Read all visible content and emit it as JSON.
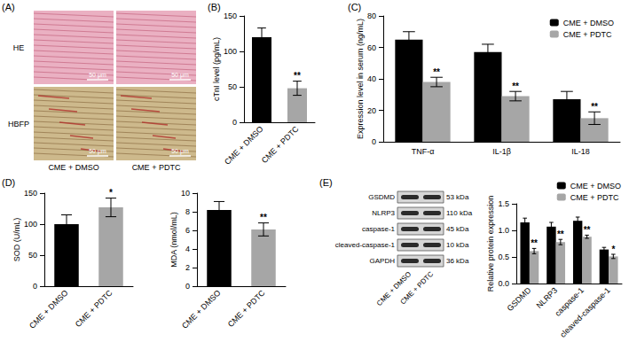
{
  "panel_labels": [
    "(A)",
    "(B)",
    "(C)",
    "(D)",
    "(E)"
  ],
  "histology": {
    "rows": [
      "HE",
      "HBFP"
    ],
    "columns": [
      "CME + DMSO",
      "CME + PDTC"
    ],
    "scale_bar": "50 μm"
  },
  "western_blot": {
    "proteins": [
      {
        "name": "GSDMD",
        "size": "53 kDa"
      },
      {
        "name": "NLRP3",
        "size": "110 kDa"
      },
      {
        "name": "caspase-1",
        "size": "45 kDa"
      },
      {
        "name": "cleaved-caspase-1",
        "size": "10 kDa"
      },
      {
        "name": "GAPDH",
        "size": "36 kDa"
      }
    ],
    "lanes": [
      "CME + DMSO",
      "CME + PDTC"
    ]
  },
  "chart_data": [
    {
      "type": "bar",
      "y_label": "cTnI level (pg/mL)",
      "categories": [
        "CME + DMSO",
        "CME + PDTC"
      ],
      "values": [
        120,
        48
      ],
      "errors": [
        13,
        10
      ],
      "significance": [
        null,
        "**"
      ],
      "colors": [
        "#000000",
        "#a6a6a6"
      ],
      "ylim": [
        0,
        150
      ],
      "yticks": [
        0,
        50,
        100,
        150
      ],
      "grid": false
    },
    {
      "type": "bar",
      "y_label": "Expression level in serum (ng/mL)",
      "categories": [
        "TNF-α",
        "IL-1β",
        "IL-18"
      ],
      "series": [
        {
          "name": "CME + DMSO",
          "color": "#000000",
          "values": [
            65,
            57,
            27
          ],
          "errors": [
            5,
            5,
            5
          ],
          "significance": [
            null,
            null,
            null
          ]
        },
        {
          "name": "CME + PDTC",
          "color": "#a6a6a6",
          "values": [
            38,
            29,
            15
          ],
          "errors": [
            3,
            3,
            4
          ],
          "significance": [
            "**",
            "**",
            "**"
          ]
        }
      ],
      "ylim": [
        0,
        80
      ],
      "yticks": [
        0,
        20,
        40,
        60,
        80
      ],
      "legend": "upper right",
      "grid": false
    },
    {
      "type": "bar",
      "y_label": "SOD (U/mL)",
      "categories": [
        "CME + DMSO",
        "CME + PDTC"
      ],
      "values": [
        100,
        127
      ],
      "errors": [
        15,
        15
      ],
      "significance": [
        null,
        "*"
      ],
      "colors": [
        "#000000",
        "#a6a6a6"
      ],
      "ylim": [
        0,
        150
      ],
      "yticks": [
        0,
        50,
        100,
        150
      ],
      "grid": false
    },
    {
      "type": "bar",
      "y_label": "MDA (nmol/mL)",
      "categories": [
        "CME + DMSO",
        "CME + PDTC"
      ],
      "values": [
        8.2,
        6.1
      ],
      "errors": [
        0.9,
        0.7
      ],
      "significance": [
        null,
        "**"
      ],
      "colors": [
        "#000000",
        "#a6a6a6"
      ],
      "ylim": [
        0,
        10
      ],
      "yticks": [
        0,
        2,
        4,
        6,
        8,
        10
      ],
      "grid": false
    },
    {
      "type": "bar",
      "y_label": "Relative protein expression",
      "categories": [
        "GSDMD",
        "NLRP3",
        "caspase-1",
        "cleaved-caspase-1"
      ],
      "series": [
        {
          "name": "CME + DMSO",
          "color": "#000000",
          "values": [
            1.15,
            1.07,
            1.18,
            0.64
          ],
          "errors": [
            0.08,
            0.08,
            0.07,
            0.04
          ],
          "significance": [
            null,
            null,
            null,
            null
          ]
        },
        {
          "name": "CME + PDTC",
          "color": "#a6a6a6",
          "values": [
            0.61,
            0.78,
            0.88,
            0.51
          ],
          "errors": [
            0.05,
            0.05,
            0.03,
            0.04
          ],
          "significance": [
            "**",
            "**",
            "**",
            "*"
          ]
        }
      ],
      "ylim": [
        0,
        1.5
      ],
      "yticks": [
        {
          "value": 0,
          "label": "0.0"
        },
        0.5,
        {
          "value": 1,
          "label": "1.0"
        },
        1.5
      ],
      "legend": "upper right",
      "grid": false
    }
  ]
}
